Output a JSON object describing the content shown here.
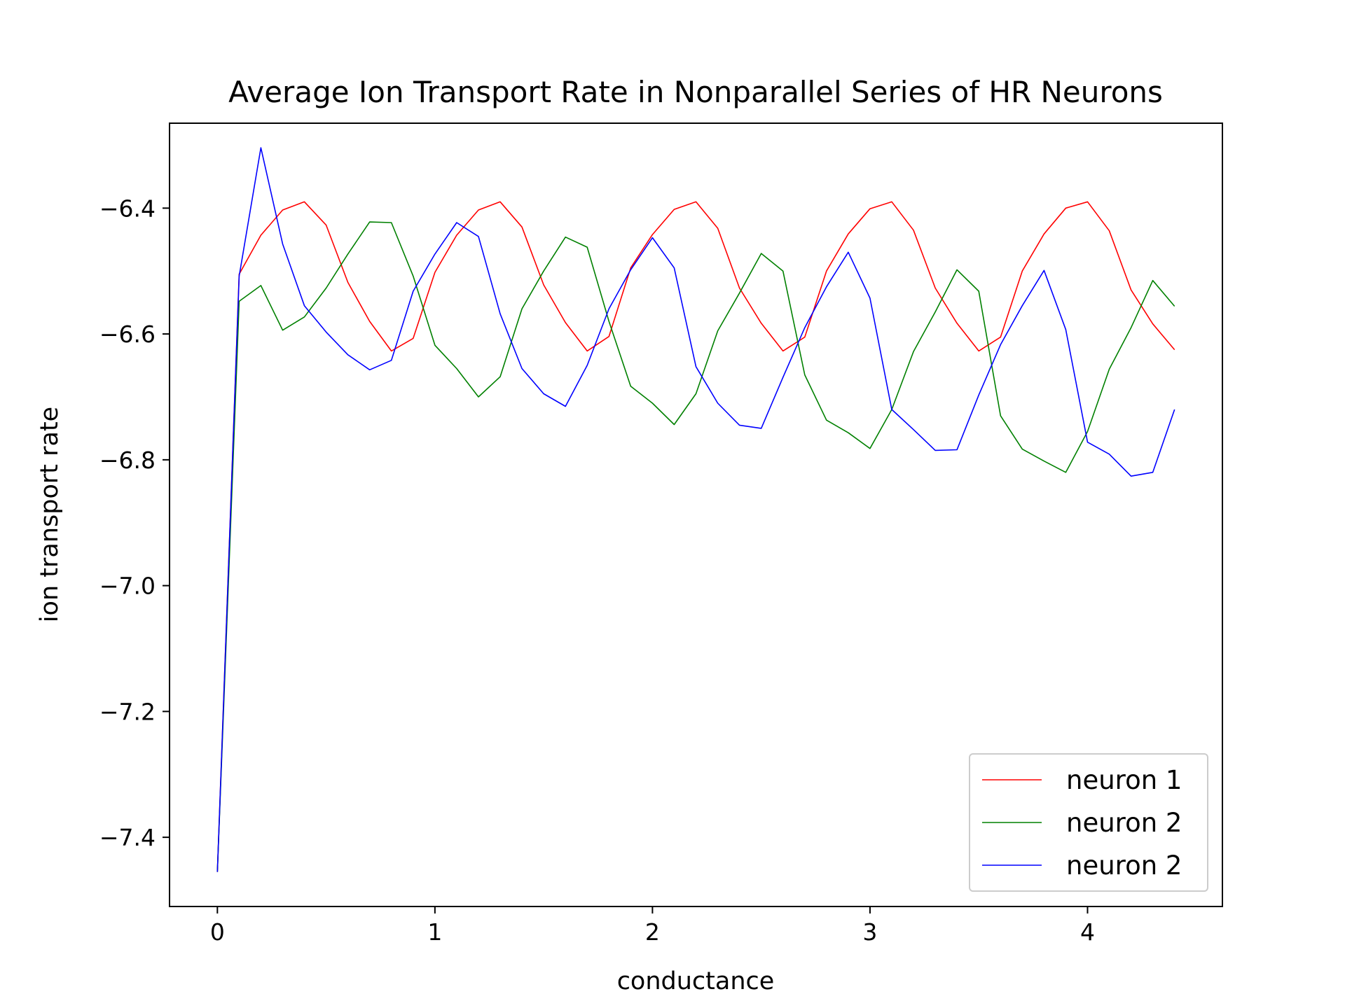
{
  "chart_data": {
    "type": "line",
    "title": "Average Ion Transport Rate in Nonparallel Series of HR Neurons",
    "xlabel": "conductance",
    "ylabel": "ion transport rate",
    "xlim": [
      -0.22,
      4.62
    ],
    "ylim": [
      -7.51,
      -6.265
    ],
    "xticks": [
      0,
      1,
      2,
      3,
      4
    ],
    "xtick_labels": [
      "0",
      "1",
      "2",
      "3",
      "4"
    ],
    "yticks": [
      -7.4,
      -7.2,
      -7.0,
      -6.8,
      -6.6,
      -6.4
    ],
    "ytick_labels": [
      "−7.4",
      "−7.2",
      "−7.0",
      "−6.8",
      "−6.6",
      "−6.4"
    ],
    "grid": false,
    "legend_position": "lower right",
    "x": [
      0.0,
      0.1,
      0.2,
      0.3,
      0.4,
      0.5,
      0.6,
      0.7,
      0.8,
      0.9,
      1.0,
      1.1,
      1.2,
      1.3,
      1.4,
      1.5,
      1.6,
      1.7,
      1.8,
      1.9,
      2.0,
      2.1,
      2.2,
      2.3,
      2.4,
      2.5,
      2.6,
      2.7,
      2.8,
      2.9,
      3.0,
      3.1,
      3.2,
      3.3,
      3.4,
      3.5,
      3.6,
      3.7,
      3.8,
      3.9,
      4.0,
      4.1,
      4.2,
      4.3,
      4.4
    ],
    "series": [
      {
        "name": "neuron 1",
        "color": "#ff0000",
        "values": [
          -7.455,
          -6.505,
          -6.443,
          -6.403,
          -6.39,
          -6.427,
          -6.518,
          -6.58,
          -6.627,
          -6.607,
          -6.502,
          -6.443,
          -6.403,
          -6.39,
          -6.43,
          -6.522,
          -6.582,
          -6.627,
          -6.604,
          -6.495,
          -6.442,
          -6.402,
          -6.39,
          -6.432,
          -6.527,
          -6.583,
          -6.627,
          -6.605,
          -6.5,
          -6.441,
          -6.401,
          -6.39,
          -6.435,
          -6.527,
          -6.583,
          -6.627,
          -6.605,
          -6.5,
          -6.441,
          -6.4,
          -6.39,
          -6.436,
          -6.53,
          -6.584,
          -6.625
        ]
      },
      {
        "name": "neuron 2",
        "color": "#008000",
        "values": [
          -7.455,
          -6.548,
          -6.523,
          -6.594,
          -6.573,
          -6.527,
          -6.473,
          -6.422,
          -6.423,
          -6.508,
          -6.618,
          -6.655,
          -6.7,
          -6.668,
          -6.56,
          -6.5,
          -6.446,
          -6.462,
          -6.58,
          -6.683,
          -6.71,
          -6.744,
          -6.695,
          -6.595,
          -6.535,
          -6.472,
          -6.5,
          -6.665,
          -6.737,
          -6.757,
          -6.782,
          -6.72,
          -6.628,
          -6.565,
          -6.498,
          -6.532,
          -6.73,
          -6.783,
          -6.802,
          -6.82,
          -6.755,
          -6.656,
          -6.59,
          -6.515,
          -6.556
        ]
      },
      {
        "name": "neuron 2",
        "color": "#0000ff",
        "values": [
          -7.455,
          -6.508,
          -6.304,
          -6.457,
          -6.555,
          -6.597,
          -6.633,
          -6.657,
          -6.642,
          -6.532,
          -6.473,
          -6.423,
          -6.445,
          -6.568,
          -6.655,
          -6.695,
          -6.715,
          -6.65,
          -6.56,
          -6.498,
          -6.447,
          -6.495,
          -6.652,
          -6.71,
          -6.745,
          -6.75,
          -6.669,
          -6.59,
          -6.525,
          -6.47,
          -6.543,
          -6.72,
          -6.752,
          -6.785,
          -6.784,
          -6.697,
          -6.617,
          -6.555,
          -6.499,
          -6.593,
          -6.772,
          -6.791,
          -6.826,
          -6.82,
          -6.72
        ]
      }
    ]
  }
}
